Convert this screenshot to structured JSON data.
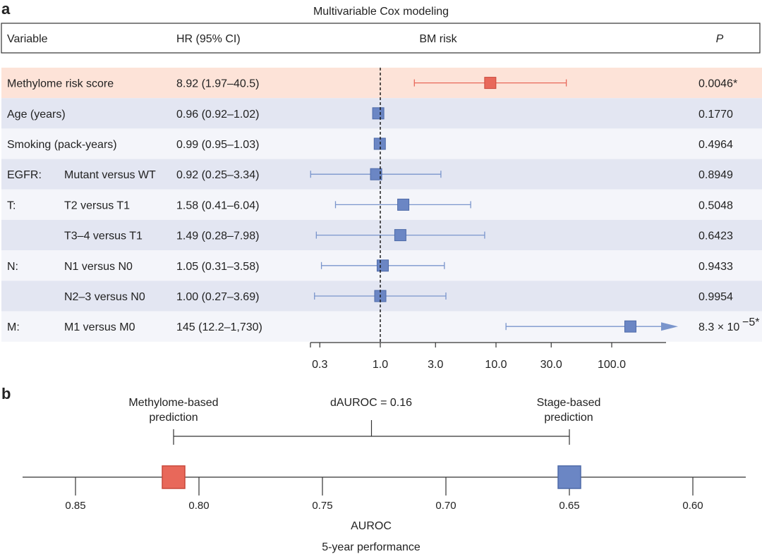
{
  "panel_a": {
    "label": "a",
    "title": "Multivariable Cox modeling",
    "headers": {
      "variable": "Variable",
      "hr": "HR (95% CI)",
      "risk": "BM risk",
      "p": "P"
    },
    "colors": {
      "highlight_row": "#fde3d8",
      "shaded_row": "#e3e6f2",
      "light_row": "#f4f5fa",
      "red": "#e8685a",
      "blue": "#6b86c4",
      "blue_line": "#7a95cc"
    }
  },
  "panel_b": {
    "label": "b",
    "left_label_1": "Methylome-based",
    "left_label_2": "prediction",
    "diff_label": "dAUROC = 0.16",
    "right_label_1": "Stage-based",
    "right_label_2": "prediction",
    "xlabel": "AUROC",
    "subtitle": "5-year performance"
  },
  "chart_data": [
    {
      "type": "forest",
      "title": "Multivariable Cox modeling",
      "xlabel": "BM risk",
      "scale": "log",
      "xlim": [
        0.27,
        250
      ],
      "ticks": [
        0.3,
        1.0,
        3.0,
        10.0,
        30.0,
        100.0
      ],
      "tick_labels": [
        "0.3",
        "1.0",
        "3.0",
        "10.0",
        "30.0",
        "100.0"
      ],
      "reference_line": 1.0,
      "rows": [
        {
          "group": "",
          "variable": "Methylome risk score",
          "hr_text": "8.92 (1.97–40.5)",
          "hr": 8.92,
          "lo": 1.97,
          "hi": 40.5,
          "p": "0.0046*",
          "color": "red",
          "shade": "highlight"
        },
        {
          "group": "",
          "variable": "Age (years)",
          "hr_text": "0.96 (0.92–1.02)",
          "hr": 0.96,
          "lo": 0.92,
          "hi": 1.02,
          "p": "0.1770",
          "color": "blue",
          "shade": "shaded"
        },
        {
          "group": "",
          "variable": "Smoking (pack-years)",
          "hr_text": "0.99 (0.95–1.03)",
          "hr": 0.99,
          "lo": 0.95,
          "hi": 1.03,
          "p": "0.4964",
          "color": "blue",
          "shade": "light"
        },
        {
          "group": "EGFR:",
          "variable": "Mutant versus WT",
          "hr_text": "0.92 (0.25–3.34)",
          "hr": 0.92,
          "lo": 0.25,
          "hi": 3.34,
          "p": "0.8949",
          "color": "blue",
          "shade": "shaded"
        },
        {
          "group": "T:",
          "variable": "T2 versus T1",
          "hr_text": "1.58 (0.41–6.04)",
          "hr": 1.58,
          "lo": 0.41,
          "hi": 6.04,
          "p": "0.5048",
          "color": "blue",
          "shade": "light"
        },
        {
          "group": "",
          "variable": "T3–4 versus T1",
          "hr_text": "1.49 (0.28–7.98)",
          "hr": 1.49,
          "lo": 0.28,
          "hi": 7.98,
          "p": "0.6423",
          "color": "blue",
          "shade": "shaded"
        },
        {
          "group": "N:",
          "variable": "N1 versus N0",
          "hr_text": "1.05 (0.31–3.58)",
          "hr": 1.05,
          "lo": 0.31,
          "hi": 3.58,
          "p": "0.9433",
          "color": "blue",
          "shade": "light"
        },
        {
          "group": "",
          "variable": "N2–3 versus N0",
          "hr_text": "1.00 (0.27–3.69)",
          "hr": 1.0,
          "lo": 0.27,
          "hi": 3.69,
          "p": "0.9954",
          "color": "blue",
          "shade": "shaded"
        },
        {
          "group": "M:",
          "variable": "M1 versus M0",
          "hr_text": "145 (12.2–1,730)",
          "hr": 145,
          "lo": 12.2,
          "hi": 1730,
          "p_base": "8.3 × 10",
          "p_exp": "−5*",
          "color": "blue",
          "shade": "light",
          "arrow": true
        }
      ]
    },
    {
      "type": "scatter",
      "title": "5-year performance",
      "xlabel": "AUROC",
      "xlim": [
        0.871,
        0.578
      ],
      "ticks": [
        0.85,
        0.8,
        0.75,
        0.7,
        0.65,
        0.6
      ],
      "tick_labels": [
        "0.85",
        "0.80",
        "0.75",
        "0.70",
        "0.65",
        "0.60"
      ],
      "points": [
        {
          "name": "Methylome-based prediction",
          "auroc": 0.81,
          "color": "red"
        },
        {
          "name": "Stage-based prediction",
          "auroc": 0.65,
          "color": "blue"
        }
      ],
      "difference": 0.16
    }
  ]
}
